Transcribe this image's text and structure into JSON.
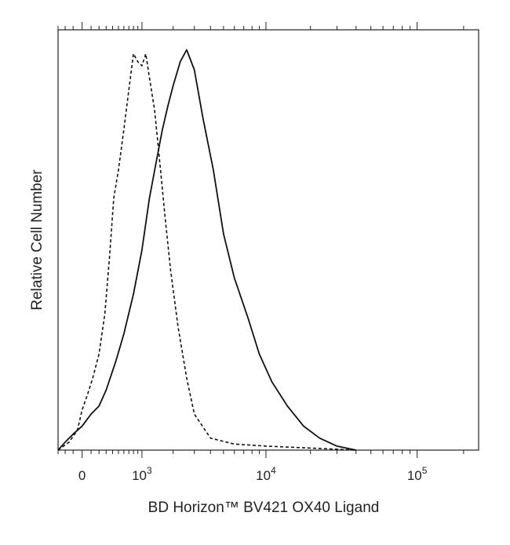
{
  "chart_data": {
    "type": "line",
    "xlabel": "BD Horizon™ BV421 OX40 Ligand",
    "ylabel": "Relative Cell Number",
    "x_scale": "biexponential",
    "x_ticks": [
      {
        "value": 0,
        "base": "0",
        "exp": ""
      },
      {
        "value": 1000,
        "base": "10",
        "exp": "3"
      },
      {
        "value": 10000,
        "base": "10",
        "exp": "4"
      },
      {
        "value": 100000,
        "base": "10",
        "exp": "5"
      }
    ],
    "xlim": [
      -300,
      250000
    ],
    "ylim": [
      0,
      1.05
    ],
    "grid": false,
    "series": [
      {
        "style": "dashed",
        "x": [
          -300,
          -150,
          -50,
          0,
          60,
          120,
          200,
          280,
          350,
          420,
          500,
          600,
          700,
          800,
          900,
          1000,
          1100,
          1200,
          1350,
          1500,
          1700,
          1900,
          2200,
          2600,
          3000,
          4000,
          6000,
          10000,
          20000,
          40000
        ],
        "y": [
          0.0,
          0.02,
          0.05,
          0.1,
          0.14,
          0.18,
          0.24,
          0.34,
          0.48,
          0.63,
          0.7,
          0.8,
          0.9,
          0.99,
          0.97,
          0.96,
          0.99,
          0.93,
          0.85,
          0.73,
          0.58,
          0.45,
          0.31,
          0.18,
          0.09,
          0.03,
          0.015,
          0.01,
          0.005,
          0.0
        ]
      },
      {
        "style": "solid",
        "x": [
          -300,
          -200,
          -100,
          0,
          100,
          200,
          300,
          450,
          600,
          800,
          1000,
          1200,
          1400,
          1600,
          1800,
          2000,
          2300,
          2600,
          3000,
          3500,
          4200,
          5000,
          6000,
          7500,
          9000,
          11000,
          14000,
          18000,
          23000,
          30000,
          40000
        ],
        "y": [
          0.0,
          0.02,
          0.04,
          0.06,
          0.09,
          0.11,
          0.15,
          0.22,
          0.29,
          0.39,
          0.5,
          0.63,
          0.72,
          0.8,
          0.86,
          0.91,
          0.97,
          1.0,
          0.95,
          0.83,
          0.7,
          0.54,
          0.43,
          0.33,
          0.24,
          0.17,
          0.11,
          0.06,
          0.03,
          0.01,
          0.0
        ]
      }
    ]
  }
}
